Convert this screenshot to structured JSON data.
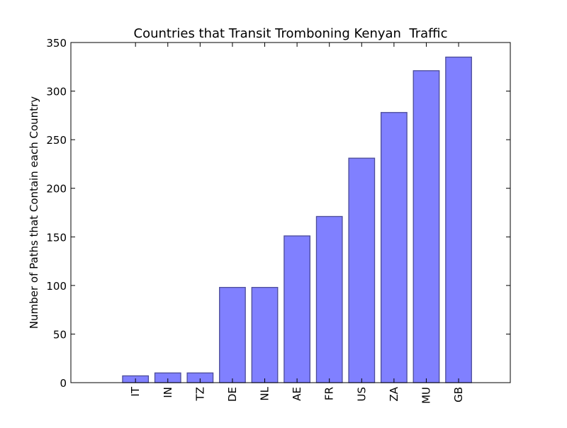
{
  "chart_data": {
    "type": "bar",
    "title": "Countries that Transit Tromboning Kenyan  Traffic",
    "xlabel": "",
    "ylabel": "Number of Paths that Contain each Country",
    "categories": [
      "IT",
      "IN",
      "TZ",
      "DE",
      "NL",
      "AE",
      "FR",
      "US",
      "ZA",
      "MU",
      "GB"
    ],
    "values": [
      7,
      10,
      10,
      98,
      98,
      151,
      171,
      231,
      278,
      321,
      335
    ],
    "ylim": [
      0,
      350
    ],
    "yticks": [
      0,
      50,
      100,
      150,
      200,
      250,
      300,
      350
    ],
    "grid": false,
    "legend": "none",
    "colors": {
      "bar_fill": "#8080ff",
      "bar_edge": "#4c4c99",
      "axes": "#000000"
    }
  }
}
